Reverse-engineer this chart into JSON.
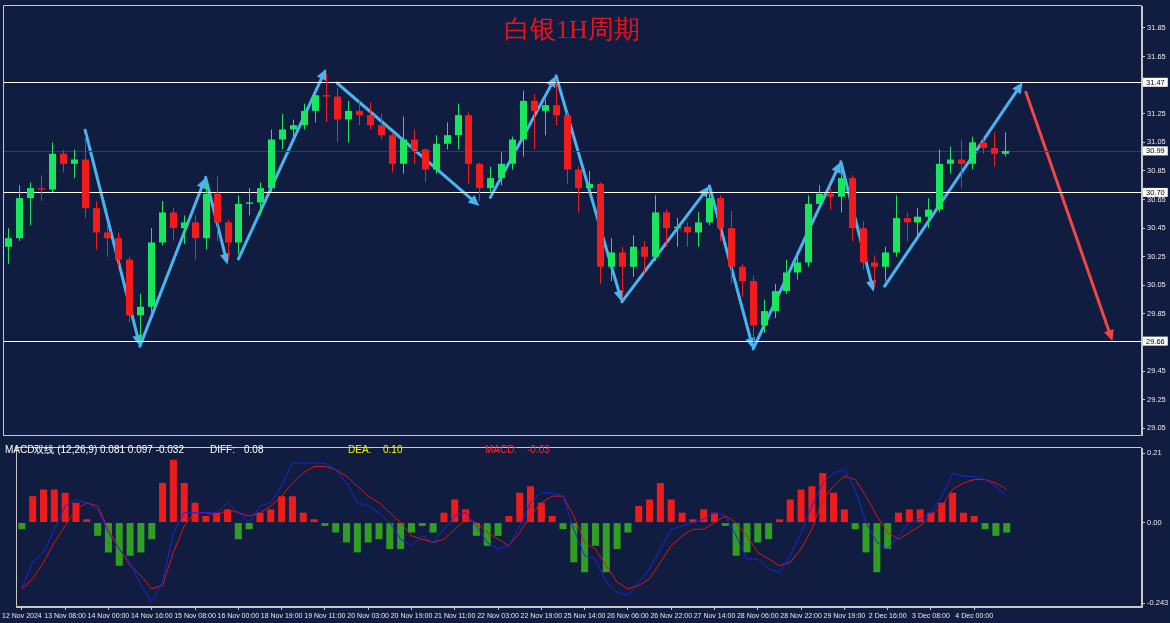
{
  "chart_data": [
    {
      "type": "candlestick",
      "title": "白银1H周期",
      "categories": [
        null,
        null,
        null,
        null,
        null,
        null,
        null,
        null,
        null,
        null,
        null,
        null,
        null,
        null,
        null,
        null,
        null,
        null,
        null,
        null,
        null,
        null,
        null,
        null,
        null,
        null,
        null,
        null,
        null,
        null,
        null,
        null,
        null,
        null,
        null,
        null,
        null,
        null,
        null,
        null,
        null,
        null,
        null,
        null,
        null,
        null,
        null,
        null,
        null,
        null,
        null,
        null,
        null,
        null,
        null,
        null,
        null,
        null,
        null,
        null,
        null,
        null,
        null,
        null,
        null,
        null,
        null,
        null,
        null,
        null,
        null,
        null,
        null,
        null,
        null,
        null,
        null,
        null,
        null,
        null,
        null,
        null,
        null,
        null,
        null,
        null,
        null,
        null,
        null,
        null,
        null,
        null,
        null,
        null,
        null,
        null,
        null,
        null,
        null,
        null,
        null,
        null,
        null,
        null
      ],
      "ohlc": [
        [
          30.32,
          30.45,
          30.2,
          30.38
        ],
        [
          30.38,
          30.75,
          30.36,
          30.66
        ],
        [
          30.66,
          30.77,
          30.47,
          30.73
        ],
        [
          30.73,
          30.82,
          30.64,
          30.72
        ],
        [
          30.72,
          31.05,
          30.7,
          30.97
        ],
        [
          30.97,
          31.0,
          30.84,
          30.9
        ],
        [
          30.9,
          31.0,
          30.8,
          30.93
        ],
        [
          30.93,
          31.1,
          30.52,
          30.59
        ],
        [
          30.59,
          30.64,
          30.3,
          30.42
        ],
        [
          30.42,
          30.47,
          30.25,
          30.38
        ],
        [
          30.38,
          30.42,
          30.18,
          30.23
        ],
        [
          30.23,
          30.25,
          29.79,
          29.84
        ],
        [
          29.84,
          29.99,
          29.66,
          29.9
        ],
        [
          29.9,
          30.45,
          29.86,
          30.35
        ],
        [
          30.35,
          30.64,
          30.33,
          30.56
        ],
        [
          30.56,
          30.59,
          30.36,
          30.45
        ],
        [
          30.45,
          30.54,
          30.34,
          30.49
        ],
        [
          30.49,
          30.54,
          30.23,
          30.38
        ],
        [
          30.38,
          30.77,
          30.3,
          30.69
        ],
        [
          30.69,
          30.81,
          30.36,
          30.49
        ],
        [
          30.49,
          30.51,
          30.23,
          30.35
        ],
        [
          30.35,
          30.68,
          30.27,
          30.62
        ],
        [
          30.62,
          30.73,
          30.54,
          30.63
        ],
        [
          30.63,
          30.77,
          30.54,
          30.73
        ],
        [
          30.73,
          31.14,
          30.7,
          31.07
        ],
        [
          31.07,
          31.25,
          31.0,
          31.14
        ],
        [
          31.14,
          31.21,
          31.05,
          31.17
        ],
        [
          31.17,
          31.32,
          31.14,
          31.27
        ],
        [
          31.27,
          31.43,
          31.19,
          31.38
        ],
        [
          31.38,
          31.53,
          31.19,
          31.37
        ],
        [
          31.37,
          31.43,
          31.05,
          31.21
        ],
        [
          31.21,
          31.34,
          31.05,
          31.27
        ],
        [
          31.27,
          31.34,
          31.17,
          31.24
        ],
        [
          31.24,
          31.33,
          31.14,
          31.17
        ],
        [
          31.17,
          31.25,
          31.07,
          31.1
        ],
        [
          31.1,
          31.12,
          30.84,
          30.9
        ],
        [
          30.9,
          31.23,
          30.83,
          31.07
        ],
        [
          31.07,
          31.14,
          30.9,
          31.0
        ],
        [
          31.0,
          31.01,
          30.77,
          30.86
        ],
        [
          30.86,
          31.1,
          30.83,
          31.04
        ],
        [
          31.04,
          31.19,
          31.0,
          31.1
        ],
        [
          31.1,
          31.32,
          31.0,
          31.24
        ],
        [
          31.24,
          31.26,
          30.76,
          30.9
        ],
        [
          30.9,
          30.91,
          30.64,
          30.73
        ],
        [
          30.73,
          30.88,
          30.7,
          30.8
        ],
        [
          30.8,
          30.98,
          30.75,
          30.9
        ],
        [
          30.9,
          31.09,
          30.86,
          31.07
        ],
        [
          31.07,
          31.41,
          30.95,
          31.34
        ],
        [
          31.34,
          31.39,
          31.0,
          31.27
        ],
        [
          31.27,
          31.35,
          31.1,
          31.31
        ],
        [
          31.31,
          31.48,
          31.17,
          31.24
        ],
        [
          31.24,
          31.26,
          30.76,
          30.86
        ],
        [
          30.86,
          30.88,
          30.56,
          30.73
        ],
        [
          30.73,
          30.85,
          30.69,
          30.76
        ],
        [
          30.76,
          30.77,
          30.06,
          30.18
        ],
        [
          30.18,
          30.38,
          30.08,
          30.28
        ],
        [
          30.28,
          30.32,
          29.97,
          30.18
        ],
        [
          30.18,
          30.4,
          30.11,
          30.32
        ],
        [
          30.32,
          30.36,
          30.13,
          30.25
        ],
        [
          30.25,
          30.68,
          30.22,
          30.56
        ],
        [
          30.56,
          30.58,
          30.32,
          30.45
        ],
        [
          30.45,
          30.52,
          30.32,
          30.46
        ],
        [
          30.46,
          30.49,
          30.32,
          30.42
        ],
        [
          30.42,
          30.56,
          30.32,
          30.49
        ],
        [
          30.49,
          30.71,
          30.47,
          30.66
        ],
        [
          30.66,
          30.68,
          30.36,
          30.45
        ],
        [
          30.45,
          30.57,
          30.06,
          30.18
        ],
        [
          30.18,
          30.2,
          29.97,
          30.08
        ],
        [
          30.08,
          30.12,
          29.64,
          29.77
        ],
        [
          29.77,
          29.95,
          29.72,
          29.87
        ],
        [
          29.87,
          30.06,
          29.82,
          30.01
        ],
        [
          30.01,
          30.23,
          29.99,
          30.14
        ],
        [
          30.14,
          30.27,
          30.09,
          30.21
        ],
        [
          30.21,
          30.68,
          30.18,
          30.62
        ],
        [
          30.62,
          30.75,
          30.58,
          30.69
        ],
        [
          30.69,
          30.74,
          30.58,
          30.67
        ],
        [
          30.67,
          30.88,
          30.56,
          30.8
        ],
        [
          30.8,
          30.82,
          30.36,
          30.45
        ],
        [
          30.45,
          30.5,
          30.16,
          30.21
        ],
        [
          30.21,
          30.26,
          30.04,
          30.18
        ],
        [
          30.18,
          30.32,
          30.08,
          30.28
        ],
        [
          30.28,
          30.68,
          30.25,
          30.52
        ],
        [
          30.52,
          30.56,
          30.36,
          30.49
        ],
        [
          30.49,
          30.59,
          30.38,
          30.53
        ],
        [
          30.53,
          30.66,
          30.45,
          30.58
        ],
        [
          30.58,
          31.0,
          30.56,
          30.9
        ],
        [
          30.9,
          31.02,
          30.83,
          30.93
        ],
        [
          30.93,
          31.07,
          30.73,
          30.9
        ],
        [
          30.9,
          31.09,
          30.86,
          31.05
        ],
        [
          31.05,
          31.08,
          30.97,
          31.01
        ],
        [
          31.01,
          31.12,
          30.88,
          30.97
        ],
        [
          30.97,
          31.12,
          30.95,
          30.99
        ],
        null,
        null,
        null,
        null,
        null,
        null,
        null,
        null,
        null,
        null,
        null,
        null
      ],
      "colors": [
        "#19e65c",
        "#19e65c",
        "#19e65c",
        "#f21c1c",
        "#19e65c",
        "#f21c1c",
        "#19e65c",
        "#f21c1c",
        "#f21c1c",
        "#f21c1c",
        "#f21c1c",
        "#f21c1c",
        "#19e65c",
        "#19e65c",
        "#19e65c",
        "#f21c1c",
        "#19e65c",
        "#f21c1c",
        "#19e65c",
        "#f21c1c",
        "#f21c1c",
        "#19e65c",
        "#19e65c",
        "#19e65c",
        "#19e65c",
        "#19e65c",
        "#19e65c",
        "#19e65c",
        "#19e65c",
        "#f21c1c",
        "#f21c1c",
        "#19e65c",
        "#f21c1c",
        "#f21c1c",
        "#f21c1c",
        "#f21c1c",
        "#19e65c",
        "#f21c1c",
        "#f21c1c",
        "#19e65c",
        "#19e65c",
        "#19e65c",
        "#f21c1c",
        "#f21c1c",
        "#19e65c",
        "#19e65c",
        "#19e65c",
        "#19e65c",
        "#f21c1c",
        "#19e65c",
        "#f21c1c",
        "#f21c1c",
        "#f21c1c",
        "#19e65c",
        "#f21c1c",
        "#19e65c",
        "#f21c1c",
        "#19e65c",
        "#f21c1c",
        "#19e65c",
        "#f21c1c",
        "#19e65c",
        "#f21c1c",
        "#19e65c",
        "#19e65c",
        "#f21c1c",
        "#f21c1c",
        "#f21c1c",
        "#f21c1c",
        "#19e65c",
        "#19e65c",
        "#19e65c",
        "#19e65c",
        "#19e65c",
        "#19e65c",
        "#f21c1c",
        "#19e65c",
        "#f21c1c",
        "#f21c1c",
        "#f21c1c",
        "#19e65c",
        "#19e65c",
        "#f21c1c",
        "#19e65c",
        "#19e65c",
        "#19e65c",
        "#19e65c",
        "#f21c1c",
        "#19e65c",
        "#f21c1c",
        "#f21c1c",
        "#19e65c",
        null,
        null,
        null,
        null,
        null,
        null,
        null,
        null,
        null,
        null,
        null,
        null
      ],
      "ylim": [
        29.0,
        32.0
      ],
      "yticks": [
        29.05,
        29.25,
        29.45,
        29.85,
        30.05,
        30.25,
        30.45,
        30.65,
        30.85,
        31.05,
        31.25,
        31.65,
        31.85
      ],
      "ref_lines": [
        {
          "axis": "y",
          "value": 31.47,
          "label": "31.47",
          "color": "#ffffff"
        },
        {
          "axis": "y",
          "value": 30.99,
          "label": "30.99",
          "color": "#2b3b70"
        },
        {
          "axis": "y",
          "value": 30.7,
          "label": "30.70",
          "color": "#ffffff"
        },
        {
          "axis": "y",
          "value": 29.66,
          "label": "29.66",
          "color": "#ffffff"
        }
      ],
      "tick_labels": "y"
    },
    {
      "type": "bar",
      "title": "MACD双线 (12,26,9) 0.081 0.097 -0.032",
      "categories": [
        "12 Nov 2024",
        null,
        null,
        null,
        "13 Nov 08:00",
        null,
        null,
        null,
        "14 Nov 00:00",
        null,
        null,
        null,
        "14 Nov 16:00",
        null,
        null,
        null,
        "15 Nov 08:00",
        null,
        null,
        null,
        "16 Nov 00:00",
        null,
        null,
        null,
        "18 Nov 19:00",
        null,
        null,
        null,
        "19 Nov 11:00",
        null,
        null,
        null,
        "20 Nov 03:00",
        null,
        null,
        null,
        "20 Nov 19:00",
        null,
        null,
        null,
        "21 Nov 11:00",
        null,
        null,
        null,
        "22 Nov 03:00",
        null,
        null,
        null,
        "22 Nov 19:00",
        null,
        null,
        null,
        "25 Nov 14:00",
        null,
        null,
        null,
        "26 Nov 06:00",
        null,
        null,
        null,
        "26 Nov 22:00",
        null,
        null,
        null,
        "27 Nov 14:00",
        null,
        null,
        null,
        "28 Nov 06:00",
        null,
        null,
        null,
        "28 Nov 22:00",
        null,
        null,
        null,
        "29 Nov 19:00",
        null,
        null,
        null,
        "2 Dec 16:00",
        null,
        null,
        null,
        "3 Dec 08:00",
        null,
        null,
        null,
        "4 Dec 00:00",
        null,
        null,
        null,
        null,
        null,
        null,
        null,
        null,
        null,
        null,
        null,
        null,
        null,
        null,
        null
      ],
      "series": [
        {
          "type": "bar",
          "values": [
            -0.02,
            0.08,
            0.1,
            0.1,
            0.09,
            0.06,
            0.01,
            -0.04,
            -0.09,
            -0.13,
            -0.1,
            -0.09,
            -0.05,
            0.12,
            0.19,
            0.12,
            0.06,
            0.02,
            0.03,
            0.04,
            -0.05,
            -0.02,
            0.03,
            0.04,
            0.08,
            0.08,
            0.03,
            0.01,
            -0.01,
            -0.03,
            -0.06,
            -0.09,
            -0.06,
            -0.05,
            -0.08,
            -0.08,
            -0.03,
            -0.01,
            -0.03,
            0.03,
            0.07,
            0.04,
            -0.04,
            -0.07,
            -0.04,
            0.02,
            0.09,
            0.11,
            0.06,
            0.02,
            -0.02,
            -0.12,
            -0.15,
            -0.07,
            -0.15,
            -0.08,
            -0.03,
            0.05,
            0.07,
            0.12,
            0.07,
            0.03,
            0.01,
            0.04,
            0.03,
            -0.01,
            -0.1,
            -0.09,
            -0.06,
            -0.05,
            0.01,
            0.07,
            0.1,
            0.11,
            0.15,
            0.09,
            0.04,
            -0.02,
            -0.09,
            -0.15,
            -0.08,
            0.03,
            0.04,
            0.04,
            0.03,
            0.06,
            0.09,
            0.03,
            0.02,
            -0.02,
            -0.04,
            -0.03,
            null,
            null,
            null,
            null,
            null,
            null,
            null,
            null,
            null,
            null,
            null,
            null
          ],
          "colors": [
            "#2f9e22",
            "#ec1c1c",
            "#ec1c1c",
            "#ec1c1c",
            "#ec1c1c",
            "#ec1c1c",
            "#ec1c1c",
            "#2f9e22",
            "#2f9e22",
            "#2f9e22",
            "#2f9e22",
            "#2f9e22",
            "#2f9e22",
            "#ec1c1c",
            "#ec1c1c",
            "#ec1c1c",
            "#ec1c1c",
            "#ec1c1c",
            "#ec1c1c",
            "#ec1c1c",
            "#2f9e22",
            "#2f9e22",
            "#ec1c1c",
            "#ec1c1c",
            "#ec1c1c",
            "#ec1c1c",
            "#ec1c1c",
            "#ec1c1c",
            "#2f9e22",
            "#2f9e22",
            "#2f9e22",
            "#2f9e22",
            "#2f9e22",
            "#2f9e22",
            "#2f9e22",
            "#2f9e22",
            "#2f9e22",
            "#2f9e22",
            "#2f9e22",
            "#ec1c1c",
            "#ec1c1c",
            "#ec1c1c",
            "#2f9e22",
            "#2f9e22",
            "#2f9e22",
            "#ec1c1c",
            "#ec1c1c",
            "#ec1c1c",
            "#ec1c1c",
            "#ec1c1c",
            "#2f9e22",
            "#2f9e22",
            "#2f9e22",
            "#2f9e22",
            "#2f9e22",
            "#2f9e22",
            "#2f9e22",
            "#ec1c1c",
            "#ec1c1c",
            "#ec1c1c",
            "#ec1c1c",
            "#ec1c1c",
            "#ec1c1c",
            "#ec1c1c",
            "#ec1c1c",
            "#2f9e22",
            "#2f9e22",
            "#2f9e22",
            "#2f9e22",
            "#2f9e22",
            "#ec1c1c",
            "#ec1c1c",
            "#ec1c1c",
            "#ec1c1c",
            "#ec1c1c",
            "#ec1c1c",
            "#ec1c1c",
            "#2f9e22",
            "#2f9e22",
            "#2f9e22",
            "#2f9e22",
            "#ec1c1c",
            "#ec1c1c",
            "#ec1c1c",
            "#ec1c1c",
            "#ec1c1c",
            "#ec1c1c",
            "#ec1c1c",
            "#ec1c1c",
            "#2f9e22",
            "#2f9e22",
            "#2f9e22",
            null,
            null,
            null,
            null,
            null,
            null,
            null,
            null,
            null,
            null,
            null,
            null
          ]
        },
        {
          "type": "line",
          "color": "#1c24e0",
          "values": [
            -0.2,
            -0.12,
            -0.09,
            -0.02,
            0.05,
            0.07,
            0.06,
            0.04,
            -0.03,
            -0.08,
            -0.12,
            -0.19,
            -0.24,
            -0.18,
            -0.03,
            0.03,
            0.03,
            0.03,
            0.03,
            0.06,
            0.03,
            0.0,
            0.05,
            0.06,
            0.11,
            0.18,
            0.18,
            0.18,
            0.18,
            0.16,
            0.12,
            0.06,
            0.05,
            0.03,
            0.0,
            -0.05,
            -0.07,
            -0.04,
            -0.06,
            -0.02,
            0.02,
            0.03,
            -0.01,
            -0.06,
            -0.08,
            -0.07,
            -0.01,
            0.06,
            0.09,
            0.09,
            0.08,
            -0.02,
            -0.1,
            -0.11,
            -0.18,
            -0.21,
            -0.22,
            -0.18,
            -0.14,
            -0.08,
            -0.02,
            -0.01,
            0.0,
            0.01,
            0.03,
            0.02,
            -0.04,
            -0.11,
            -0.11,
            -0.14,
            -0.15,
            -0.1,
            -0.03,
            0.05,
            0.12,
            0.15,
            0.16,
            0.1,
            0.0,
            -0.06,
            -0.08,
            -0.04,
            0.0,
            0.01,
            0.03,
            0.08,
            0.15,
            0.14,
            0.14,
            0.13,
            0.11,
            0.08,
            null,
            null,
            null,
            null,
            null,
            null,
            null,
            null,
            null,
            null,
            null,
            null
          ]
        },
        {
          "type": "line",
          "color": "#e01414",
          "values": [
            -0.2,
            -0.17,
            -0.12,
            -0.06,
            -0.01,
            0.04,
            0.06,
            0.05,
            -0.02,
            -0.08,
            -0.13,
            -0.16,
            -0.2,
            -0.19,
            -0.09,
            -0.01,
            0.03,
            0.03,
            0.02,
            0.04,
            0.03,
            0.02,
            0.03,
            0.05,
            0.08,
            0.12,
            0.15,
            0.17,
            0.17,
            0.16,
            0.14,
            0.11,
            0.08,
            0.06,
            0.03,
            0.0,
            -0.04,
            -0.05,
            -0.06,
            -0.05,
            -0.02,
            0.01,
            0.0,
            -0.03,
            -0.05,
            -0.07,
            -0.03,
            0.02,
            0.06,
            0.08,
            0.08,
            0.02,
            -0.06,
            -0.08,
            -0.13,
            -0.18,
            -0.2,
            -0.19,
            -0.17,
            -0.12,
            -0.07,
            -0.04,
            -0.02,
            -0.02,
            0.0,
            0.02,
            0.0,
            -0.04,
            -0.09,
            -0.11,
            -0.13,
            -0.12,
            -0.08,
            -0.02,
            0.07,
            0.11,
            0.14,
            0.13,
            0.08,
            0.02,
            -0.03,
            -0.05,
            -0.03,
            -0.01,
            0.02,
            0.05,
            0.1,
            0.12,
            0.13,
            0.13,
            0.12,
            0.1,
            null,
            null,
            null,
            null,
            null,
            null,
            null,
            null,
            null,
            null,
            null,
            null
          ]
        }
      ],
      "ylim": [
        -0.255,
        0.224
      ],
      "yticks": [
        -0.243,
        {
          "value": 0,
          "label": "0.00"
        },
        0.21
      ],
      "annotations": [
        "DIFF:",
        "0.08",
        "DEA:",
        "0.10",
        "MACD:",
        "-0.03"
      ],
      "marker": "none"
    }
  ]
}
